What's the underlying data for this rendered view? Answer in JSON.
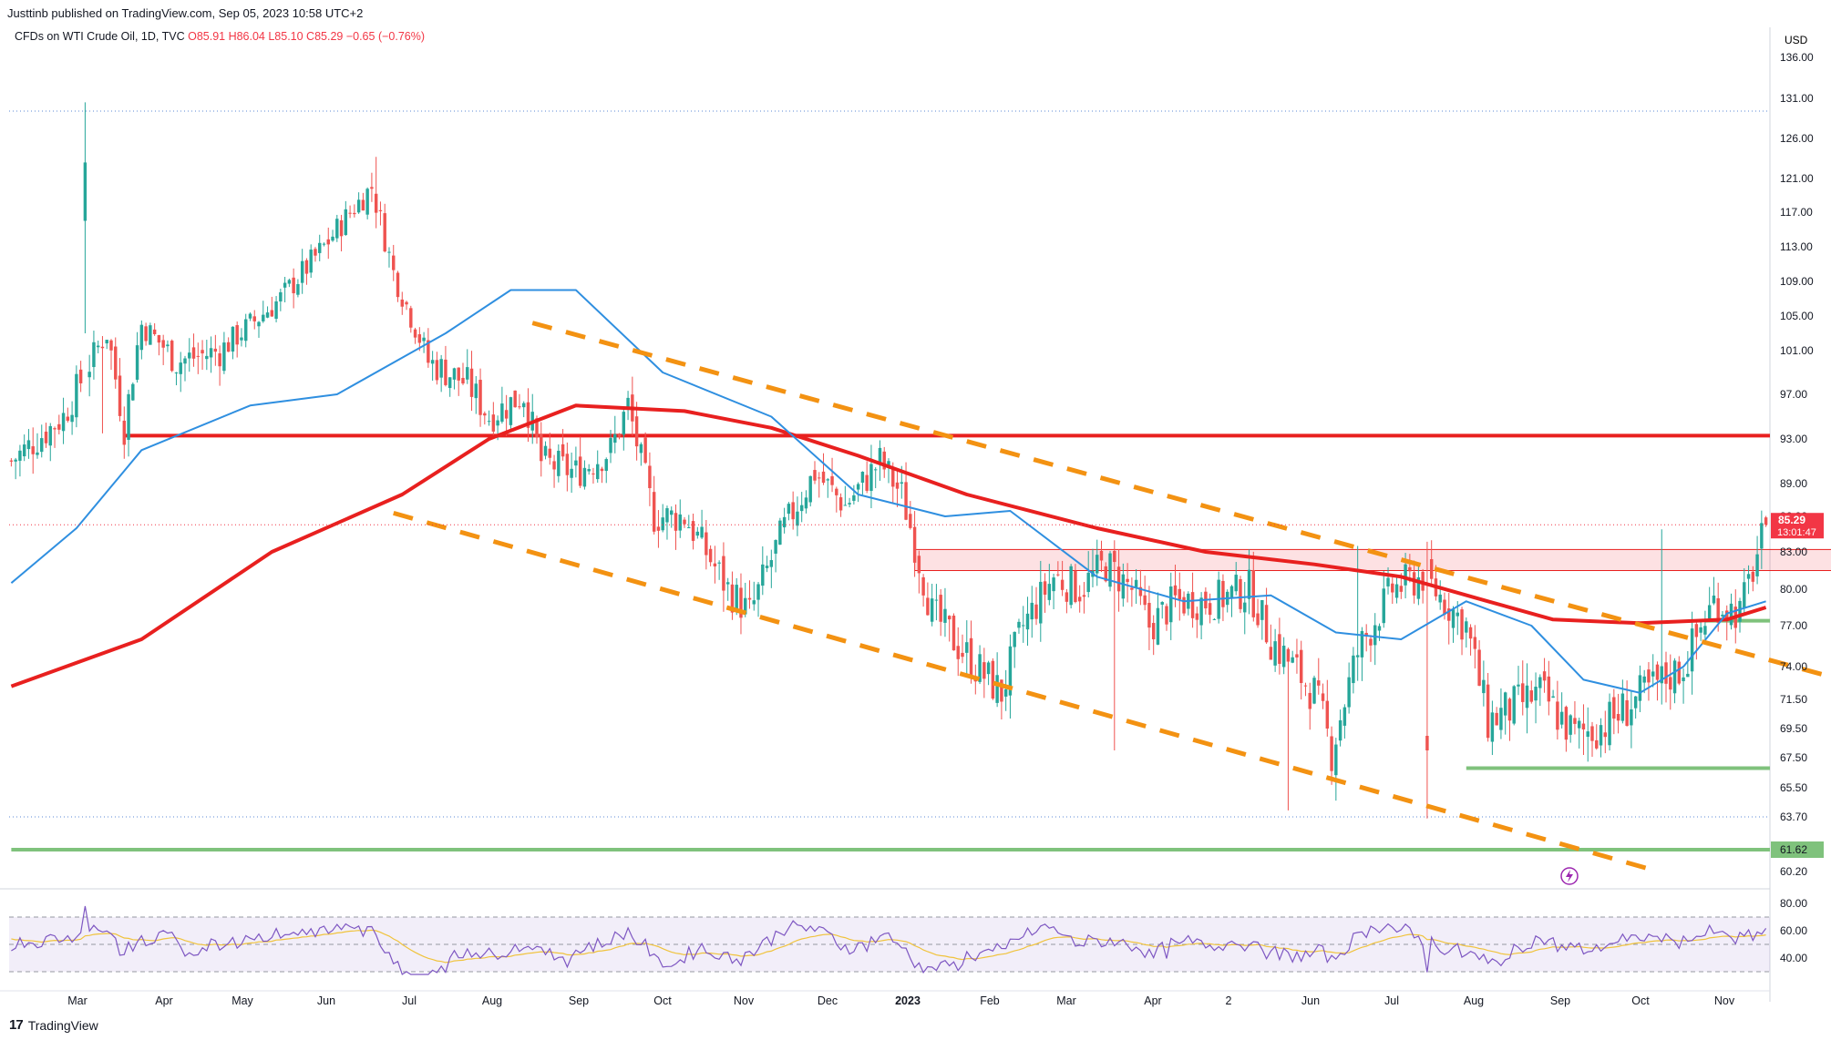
{
  "header": {
    "publish_line": "Justtinb published on TradingView.com, Sep 05, 2023 10:58 UTC+2",
    "symbol_prefix": "CFDs on WTI Crude Oil, 1D, TVC",
    "ohlc": "O85.91  H86.04  L85.10  C85.29  −0.65 (−0.76%)"
  },
  "footer": {
    "brand": "TradingView"
  },
  "colors": {
    "up": "#26a69a",
    "down": "#ef5350",
    "ma_fast": "#2f8fe0",
    "ma_slow": "#e8201f",
    "trend": "#f39212",
    "support": "#7fc27c",
    "resistance": "#e8201f",
    "rsi": "#7e57c2",
    "rsi_ma": "#f0c33c"
  },
  "chart_data": {
    "type": "candlestick",
    "title": "CFDs on WTI Crude Oil, 1D, TVC",
    "currency": "USD",
    "price_axis_ticks": [
      "136.00",
      "131.00",
      "126.00",
      "121.00",
      "117.00",
      "113.00",
      "109.00",
      "105.00",
      "101.00",
      "97.00",
      "93.00",
      "89.00",
      "86.00",
      "83.00",
      "80.00",
      "77.00",
      "74.00",
      "71.50",
      "69.50",
      "67.50",
      "65.50",
      "63.70",
      "61.62",
      "60.20"
    ],
    "ylim": [
      59.5,
      136.5
    ],
    "time_axis_labels": [
      "Mar",
      "Apr",
      "May",
      "Jun",
      "Jul",
      "Aug",
      "Sep",
      "Oct",
      "Nov",
      "Dec",
      "2023",
      "Feb",
      "Mar",
      "Apr",
      "2",
      "Jun",
      "Jul",
      "Aug",
      "Sep",
      "Oct",
      "Nov"
    ],
    "last_price": {
      "label": "85.29",
      "countdown": "13:01:47",
      "value": 85.29
    },
    "support_label": "61.62",
    "key_points": [
      {
        "date": "2022-03-08",
        "high": 130.5,
        "low": 103
      },
      {
        "date": "2022-03-16",
        "low": 93.5
      },
      {
        "date": "2022-06-08",
        "high": 123.7
      },
      {
        "date": "2022-07-14",
        "low": 90.5
      },
      {
        "date": "2022-09-26",
        "low": 76.3
      },
      {
        "date": "2022-11-07",
        "high": 93.6
      },
      {
        "date": "2022-12-09",
        "low": 70.3
      },
      {
        "date": "2023-03-20",
        "low": 64.1
      },
      {
        "date": "2023-04-12",
        "high": 83.5
      },
      {
        "date": "2023-05-04",
        "low": 63.6
      },
      {
        "date": "2023-06-12",
        "low": 66.8
      },
      {
        "date": "2023-08-10",
        "high": 84.9
      },
      {
        "date": "2023-08-24",
        "low": 77.6
      },
      {
        "date": "2023-09-05",
        "open": 85.91,
        "high": 86.04,
        "low": 85.1,
        "close": 85.29
      }
    ],
    "sma_50_points": [
      [
        0,
        80.5
      ],
      [
        15,
        85
      ],
      [
        30,
        92
      ],
      [
        55,
        96
      ],
      [
        75,
        97
      ],
      [
        100,
        103
      ],
      [
        115,
        108
      ],
      [
        130,
        108
      ],
      [
        150,
        99
      ],
      [
        175,
        95
      ],
      [
        195,
        88
      ],
      [
        215,
        86
      ],
      [
        230,
        86.5
      ],
      [
        250,
        81
      ],
      [
        270,
        79
      ],
      [
        290,
        79.5
      ],
      [
        305,
        76.5
      ],
      [
        320,
        76
      ],
      [
        335,
        79
      ],
      [
        350,
        77
      ],
      [
        362,
        73
      ],
      [
        375,
        72
      ],
      [
        385,
        74
      ],
      [
        395,
        78
      ],
      [
        404,
        79
      ]
    ],
    "sma_200_points": [
      [
        0,
        72.5
      ],
      [
        30,
        76
      ],
      [
        60,
        83
      ],
      [
        90,
        88
      ],
      [
        110,
        93
      ],
      [
        130,
        96
      ],
      [
        155,
        95.5
      ],
      [
        175,
        94
      ],
      [
        195,
        91.5
      ],
      [
        220,
        88
      ],
      [
        250,
        85
      ],
      [
        275,
        83
      ],
      [
        300,
        82
      ],
      [
        320,
        81
      ],
      [
        340,
        79
      ],
      [
        355,
        77.5
      ],
      [
        375,
        77.2
      ],
      [
        395,
        77.5
      ],
      [
        404,
        78.5
      ]
    ],
    "horizontal_levels": [
      {
        "name": "resistance",
        "price": 93.3,
        "from_bar": 26,
        "to_bar": 454,
        "color": "#e8201f"
      },
      {
        "name": "support-upper",
        "price": 77.4,
        "from_bar": 390,
        "to_bar": 458,
        "color": "#7fc27c"
      },
      {
        "name": "support-mid",
        "price": 66.8,
        "from_bar": 335,
        "to_bar": 462,
        "color": "#7fc27c"
      },
      {
        "name": "support-low",
        "price": 61.62,
        "from_bar": 0,
        "to_bar": 464,
        "color": "#7fc27c"
      }
    ],
    "zone": {
      "from_bar": 208,
      "to_bar": 448,
      "low": 81.5,
      "high": 83.2
    },
    "trendlines": [
      {
        "name": "upper",
        "p1": [
          120,
          104.2
        ],
        "p2": [
          427,
          72.5
        ]
      },
      {
        "name": "lower",
        "p1": [
          88,
          86.3
        ],
        "p2": [
          378,
          60.3
        ]
      }
    ],
    "rsi": {
      "ticks": [
        "80.00",
        "60.00",
        "40.00"
      ],
      "bands": [
        70,
        30
      ],
      "mid": 50,
      "last": 70
    }
  }
}
